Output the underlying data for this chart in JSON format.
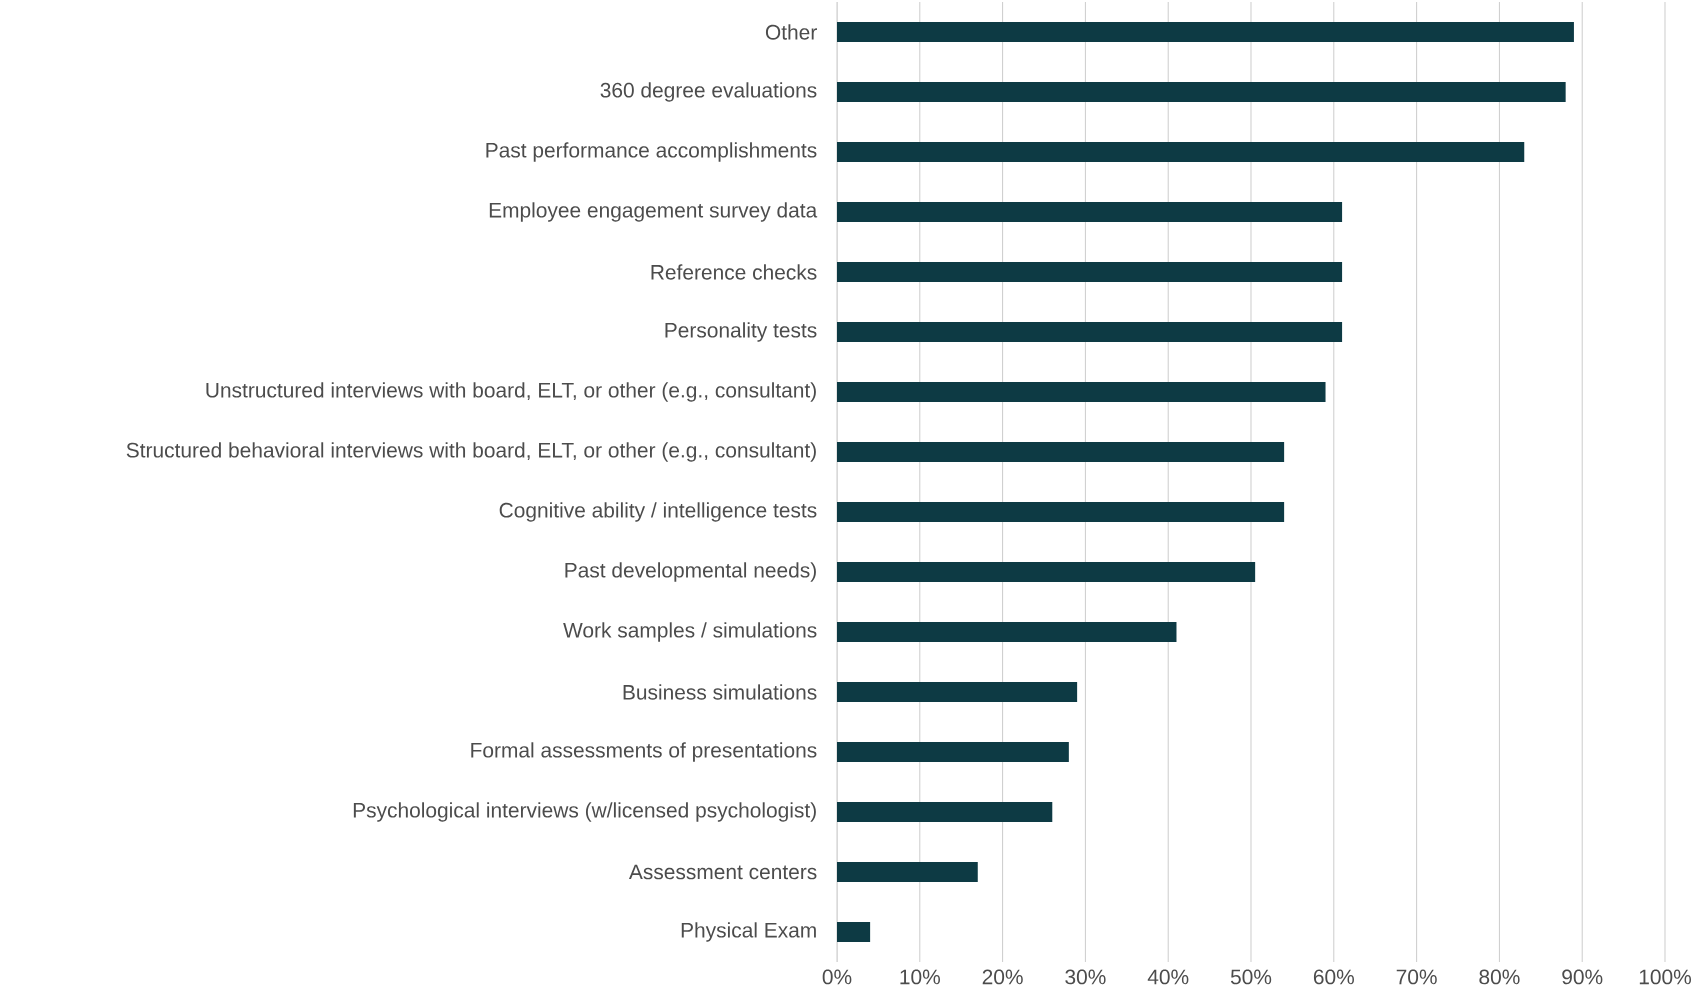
{
  "chart_data": {
    "type": "bar",
    "orientation": "horizontal",
    "categories": [
      "Other",
      "360 degree evaluations",
      "Past performance accomplishments",
      "Employee engagement survey data",
      "Reference checks",
      "Personality tests",
      "Unstructured interviews with board, ELT, or other (e.g., consultant)",
      "Structured behavioral interviews with board, ELT, or other (e.g., consultant)",
      "Cognitive ability / intelligence tests",
      "Past developmental needs)",
      "Work samples / simulations",
      "Business simulations",
      "Formal assessments of presentations",
      "Psychological interviews (w/licensed psychologist)",
      "Assessment centers",
      "Physical Exam"
    ],
    "values": [
      89,
      88,
      83,
      61,
      61,
      61,
      59,
      54,
      54,
      50.5,
      41,
      29,
      28,
      26,
      17,
      4
    ],
    "color": "#0d3a44",
    "xlim": [
      0,
      100
    ],
    "xticks": [
      {
        "value": 0,
        "label": "0%"
      },
      {
        "value": 10,
        "label": "10%"
      },
      {
        "value": 20,
        "label": "20%"
      },
      {
        "value": 30,
        "label": "30%"
      },
      {
        "value": 40,
        "label": "40%"
      },
      {
        "value": 50,
        "label": "50%"
      },
      {
        "value": 60,
        "label": "60%"
      },
      {
        "value": 70,
        "label": "70%"
      },
      {
        "value": 80,
        "label": "80%"
      },
      {
        "value": 90,
        "label": "90%"
      },
      {
        "value": 100,
        "label": "100%"
      }
    ],
    "grid": "x"
  }
}
